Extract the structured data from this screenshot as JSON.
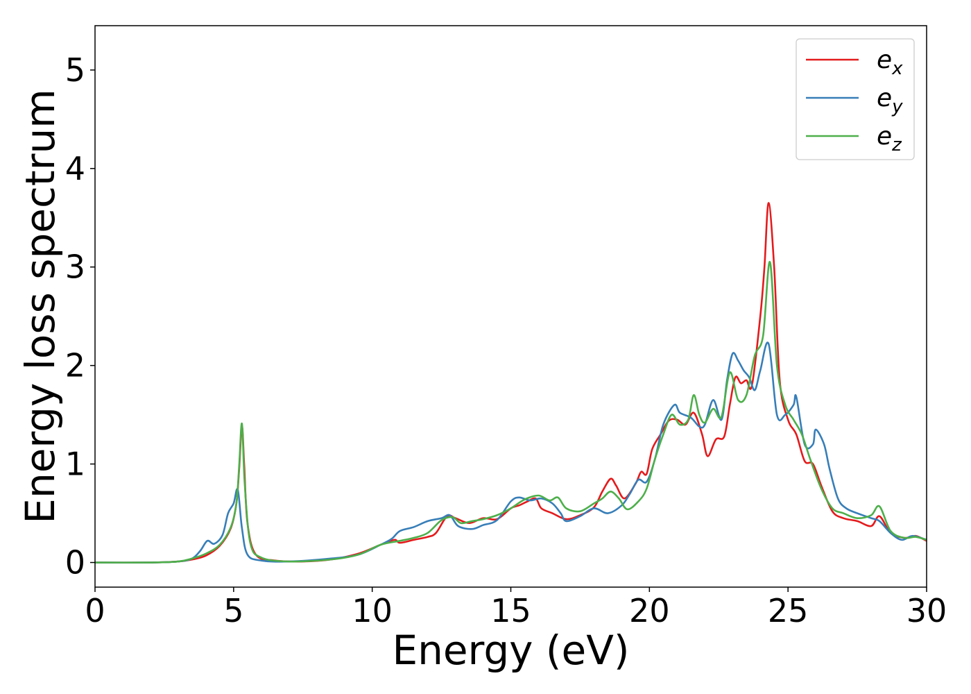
{
  "chart_data": {
    "type": "line",
    "title": "",
    "xlabel": "Energy (eV)",
    "ylabel": "Energy loss spectrum",
    "xlim": [
      0,
      30
    ],
    "ylim": [
      -0.25,
      5.45
    ],
    "xticks": [
      0,
      5,
      10,
      15,
      20,
      25,
      30
    ],
    "yticks": [
      0,
      1,
      2,
      3,
      4,
      5
    ],
    "grid": false,
    "legend_position": "top-right",
    "series": [
      {
        "name": "e_x",
        "label_base": "e",
        "label_sub": "x",
        "color": "#e41a1c",
        "points": [
          [
            0,
            0
          ],
          [
            2,
            0
          ],
          [
            3,
            0.01
          ],
          [
            3.5,
            0.03
          ],
          [
            4,
            0.07
          ],
          [
            4.5,
            0.17
          ],
          [
            4.9,
            0.35
          ],
          [
            5.1,
            0.6
          ],
          [
            5.2,
            0.95
          ],
          [
            5.3,
            1.38
          ],
          [
            5.38,
            1.0
          ],
          [
            5.5,
            0.4
          ],
          [
            5.8,
            0.08
          ],
          [
            6.5,
            0.02
          ],
          [
            7.5,
            0.01
          ],
          [
            8.5,
            0.03
          ],
          [
            9.5,
            0.09
          ],
          [
            10.3,
            0.18
          ],
          [
            10.8,
            0.23
          ],
          [
            11,
            0.2
          ],
          [
            11.5,
            0.23
          ],
          [
            12,
            0.26
          ],
          [
            12.3,
            0.3
          ],
          [
            12.7,
            0.47
          ],
          [
            13,
            0.45
          ],
          [
            13.5,
            0.4
          ],
          [
            14,
            0.45
          ],
          [
            14.5,
            0.44
          ],
          [
            15,
            0.55
          ],
          [
            15.3,
            0.58
          ],
          [
            15.6,
            0.62
          ],
          [
            15.9,
            0.65
          ],
          [
            16.1,
            0.55
          ],
          [
            16.5,
            0.5
          ],
          [
            17,
            0.44
          ],
          [
            17.5,
            0.48
          ],
          [
            18,
            0.56
          ],
          [
            18.3,
            0.72
          ],
          [
            18.6,
            0.85
          ],
          [
            18.8,
            0.78
          ],
          [
            19.1,
            0.65
          ],
          [
            19.5,
            0.8
          ],
          [
            19.7,
            0.92
          ],
          [
            19.9,
            0.9
          ],
          [
            20.1,
            1.15
          ],
          [
            20.4,
            1.3
          ],
          [
            20.7,
            1.44
          ],
          [
            21,
            1.45
          ],
          [
            21.3,
            1.4
          ],
          [
            21.6,
            1.52
          ],
          [
            21.9,
            1.3
          ],
          [
            22.1,
            1.08
          ],
          [
            22.4,
            1.25
          ],
          [
            22.7,
            1.28
          ],
          [
            22.9,
            1.6
          ],
          [
            23.1,
            1.88
          ],
          [
            23.3,
            1.82
          ],
          [
            23.5,
            1.85
          ],
          [
            23.7,
            1.8
          ],
          [
            24,
            2.5
          ],
          [
            24.15,
            3.0
          ],
          [
            24.3,
            3.65
          ],
          [
            24.5,
            3.0
          ],
          [
            24.7,
            1.85
          ],
          [
            25,
            1.45
          ],
          [
            25.3,
            1.3
          ],
          [
            25.6,
            1.03
          ],
          [
            25.9,
            1.0
          ],
          [
            26.2,
            0.78
          ],
          [
            26.6,
            0.52
          ],
          [
            27,
            0.45
          ],
          [
            27.5,
            0.42
          ],
          [
            28,
            0.37
          ],
          [
            28.3,
            0.47
          ],
          [
            28.7,
            0.3
          ],
          [
            29.2,
            0.25
          ],
          [
            29.6,
            0.27
          ],
          [
            30,
            0.22
          ]
        ]
      },
      {
        "name": "e_y",
        "label_base": "e",
        "label_sub": "y",
        "color": "#377eb8",
        "points": [
          [
            0,
            0
          ],
          [
            2,
            0
          ],
          [
            3,
            0.01
          ],
          [
            3.5,
            0.04
          ],
          [
            3.8,
            0.12
          ],
          [
            4.05,
            0.22
          ],
          [
            4.3,
            0.19
          ],
          [
            4.6,
            0.28
          ],
          [
            4.8,
            0.5
          ],
          [
            5.0,
            0.6
          ],
          [
            5.15,
            0.74
          ],
          [
            5.3,
            0.35
          ],
          [
            5.5,
            0.08
          ],
          [
            6,
            0.02
          ],
          [
            7,
            0.01
          ],
          [
            8.5,
            0.04
          ],
          [
            9.5,
            0.08
          ],
          [
            10.3,
            0.18
          ],
          [
            10.7,
            0.24
          ],
          [
            11,
            0.32
          ],
          [
            11.5,
            0.36
          ],
          [
            12,
            0.42
          ],
          [
            12.5,
            0.45
          ],
          [
            12.8,
            0.48
          ],
          [
            13.1,
            0.37
          ],
          [
            13.6,
            0.34
          ],
          [
            14,
            0.38
          ],
          [
            14.5,
            0.43
          ],
          [
            15,
            0.62
          ],
          [
            15.3,
            0.66
          ],
          [
            15.7,
            0.63
          ],
          [
            16.1,
            0.65
          ],
          [
            16.5,
            0.6
          ],
          [
            16.8,
            0.5
          ],
          [
            17,
            0.42
          ],
          [
            17.5,
            0.47
          ],
          [
            18,
            0.55
          ],
          [
            18.5,
            0.5
          ],
          [
            19,
            0.58
          ],
          [
            19.3,
            0.7
          ],
          [
            19.6,
            0.84
          ],
          [
            19.9,
            0.82
          ],
          [
            20.2,
            1.05
          ],
          [
            20.5,
            1.4
          ],
          [
            20.9,
            1.6
          ],
          [
            21.1,
            1.52
          ],
          [
            21.5,
            1.47
          ],
          [
            21.8,
            1.38
          ],
          [
            22,
            1.4
          ],
          [
            22.3,
            1.65
          ],
          [
            22.6,
            1.45
          ],
          [
            22.8,
            1.85
          ],
          [
            23,
            2.12
          ],
          [
            23.2,
            2.05
          ],
          [
            23.4,
            1.95
          ],
          [
            23.6,
            1.88
          ],
          [
            23.8,
            1.75
          ],
          [
            24,
            1.95
          ],
          [
            24.3,
            2.22
          ],
          [
            24.6,
            1.5
          ],
          [
            24.9,
            1.5
          ],
          [
            25.2,
            1.6
          ],
          [
            25.3,
            1.68
          ],
          [
            25.6,
            1.2
          ],
          [
            25.9,
            1.2
          ],
          [
            26,
            1.35
          ],
          [
            26.3,
            1.2
          ],
          [
            26.5,
            0.95
          ],
          [
            26.8,
            0.65
          ],
          [
            27.1,
            0.55
          ],
          [
            27.5,
            0.5
          ],
          [
            28,
            0.45
          ],
          [
            28.3,
            0.42
          ],
          [
            28.7,
            0.3
          ],
          [
            29.1,
            0.23
          ],
          [
            29.5,
            0.27
          ],
          [
            30,
            0.23
          ]
        ]
      },
      {
        "name": "e_z",
        "label_base": "e",
        "label_sub": "z",
        "color": "#4daf4a",
        "points": [
          [
            0,
            0
          ],
          [
            2,
            0
          ],
          [
            3,
            0.01
          ],
          [
            3.5,
            0.04
          ],
          [
            4,
            0.09
          ],
          [
            4.5,
            0.18
          ],
          [
            4.9,
            0.36
          ],
          [
            5.1,
            0.6
          ],
          [
            5.2,
            0.98
          ],
          [
            5.3,
            1.41
          ],
          [
            5.4,
            0.8
          ],
          [
            5.6,
            0.2
          ],
          [
            6,
            0.05
          ],
          [
            7,
            0.01
          ],
          [
            8.5,
            0.03
          ],
          [
            9.5,
            0.08
          ],
          [
            10.3,
            0.18
          ],
          [
            11,
            0.22
          ],
          [
            11.5,
            0.25
          ],
          [
            12,
            0.3
          ],
          [
            12.5,
            0.43
          ],
          [
            12.9,
            0.46
          ],
          [
            13.2,
            0.4
          ],
          [
            13.6,
            0.42
          ],
          [
            14,
            0.44
          ],
          [
            14.5,
            0.48
          ],
          [
            15,
            0.55
          ],
          [
            15.5,
            0.64
          ],
          [
            16,
            0.68
          ],
          [
            16.4,
            0.63
          ],
          [
            16.7,
            0.66
          ],
          [
            17,
            0.55
          ],
          [
            17.5,
            0.52
          ],
          [
            18,
            0.6
          ],
          [
            18.3,
            0.65
          ],
          [
            18.6,
            0.72
          ],
          [
            18.9,
            0.65
          ],
          [
            19.2,
            0.54
          ],
          [
            19.6,
            0.62
          ],
          [
            19.9,
            0.75
          ],
          [
            20.2,
            1.05
          ],
          [
            20.5,
            1.3
          ],
          [
            20.8,
            1.5
          ],
          [
            21.1,
            1.4
          ],
          [
            21.4,
            1.45
          ],
          [
            21.6,
            1.7
          ],
          [
            21.8,
            1.5
          ],
          [
            22.0,
            1.42
          ],
          [
            22.3,
            1.56
          ],
          [
            22.6,
            1.48
          ],
          [
            22.9,
            1.93
          ],
          [
            23.2,
            1.65
          ],
          [
            23.5,
            1.7
          ],
          [
            23.8,
            2.1
          ],
          [
            24.1,
            2.3
          ],
          [
            24.35,
            3.05
          ],
          [
            24.6,
            2.0
          ],
          [
            24.9,
            1.6
          ],
          [
            25.2,
            1.45
          ],
          [
            25.5,
            1.3
          ],
          [
            25.8,
            1.05
          ],
          [
            26.2,
            0.75
          ],
          [
            26.6,
            0.55
          ],
          [
            27,
            0.5
          ],
          [
            27.5,
            0.45
          ],
          [
            28,
            0.48
          ],
          [
            28.3,
            0.57
          ],
          [
            28.7,
            0.32
          ],
          [
            29.2,
            0.25
          ],
          [
            29.6,
            0.26
          ],
          [
            30,
            0.23
          ]
        ]
      }
    ]
  }
}
